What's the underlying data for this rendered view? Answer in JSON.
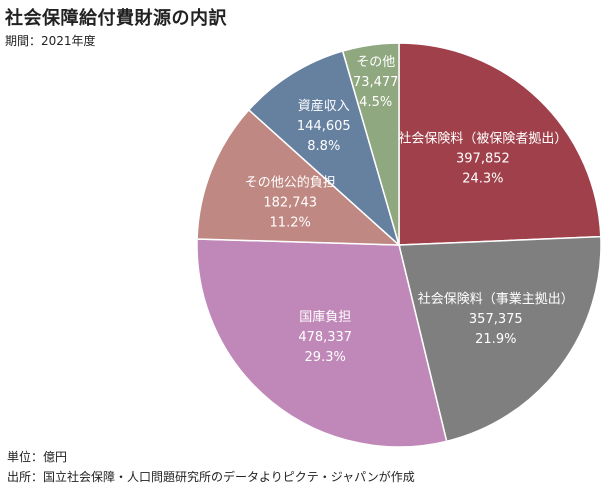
{
  "header": {
    "title": "社会保障給付費財源の内訳",
    "period": "期間：2021年度"
  },
  "footer": {
    "unit": "単位：億円",
    "source": "出所：国立社会保障・人口問題研究所のデータよりピクテ・ジャパンが作成"
  },
  "chart_data": {
    "type": "pie",
    "title": "社会保障給付費財源の内訳",
    "unit": "億円",
    "start": "12 o'clock, clockwise",
    "slices": [
      {
        "label": "社会保険料（被保険者拠出）",
        "value": 397852,
        "value_label": "397,852",
        "percent_label": "24.3%",
        "color": "#A0404A"
      },
      {
        "label": "社会保険料（事業主拠出）",
        "value": 357375,
        "value_label": "357,375",
        "percent_label": "21.9%",
        "color": "#7F7F7F"
      },
      {
        "label": "国庫負担",
        "value": 478337,
        "value_label": "478,337",
        "percent_label": "29.3%",
        "color": "#C088B8"
      },
      {
        "label": "その他公的負担",
        "value": 182743,
        "value_label": "182,743",
        "percent_label": "11.2%",
        "color": "#C08882"
      },
      {
        "label": "資産収入",
        "value": 144605,
        "value_label": "144,605",
        "percent_label": "8.8%",
        "color": "#6680A0"
      },
      {
        "label": "その他",
        "value": 73477,
        "value_label": "73,477",
        "percent_label": "4.5%",
        "color": "#90A880"
      }
    ]
  }
}
